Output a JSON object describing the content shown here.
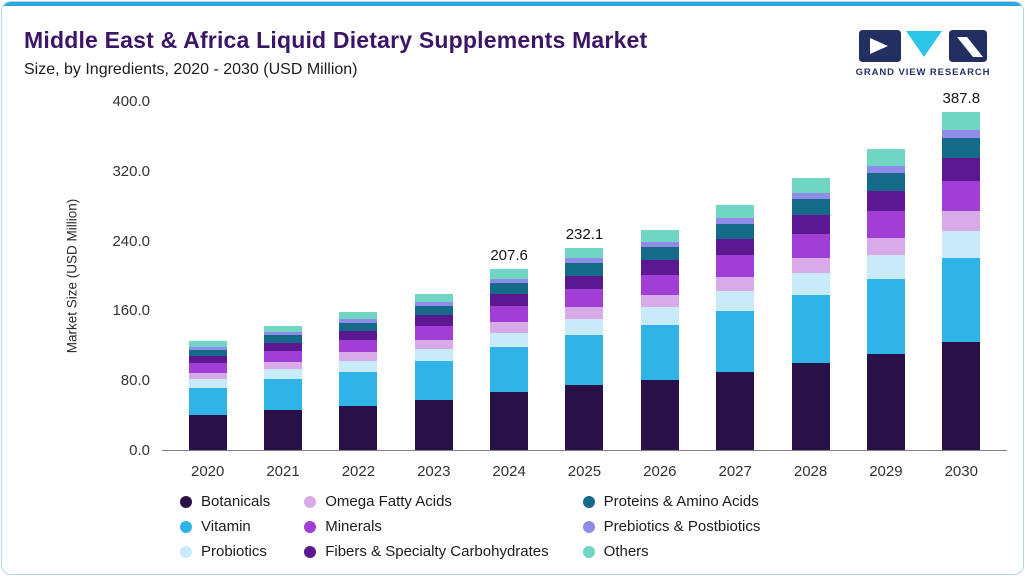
{
  "header": {
    "title": "Middle East & Africa Liquid Dietary Supplements Market",
    "subtitle": "Size, by Ingredients, 2020 - 2030 (USD Million)"
  },
  "logo": {
    "text": "GRAND VIEW RESEARCH"
  },
  "colors": {
    "accent": "#2aa9e0",
    "title": "#3b1666",
    "logo_navy": "#232e61",
    "logo_cyan": "#2ec6e6"
  },
  "chart_data": {
    "type": "bar",
    "stacked": true,
    "title": "Middle East & Africa Liquid Dietary Supplements Market",
    "subtitle": "Size, by Ingredients, 2020 - 2030 (USD Million)",
    "xlabel": "",
    "ylabel": "Market Size (USD Million)",
    "ylim": [
      0,
      400
    ],
    "yticks": [
      0,
      80,
      160,
      240,
      320,
      400
    ],
    "ytick_labels": [
      "0.0",
      "80.0",
      "160.0",
      "240.0",
      "320.0",
      "400.0"
    ],
    "grid": false,
    "legend_position": "bottom",
    "categories": [
      "2020",
      "2021",
      "2022",
      "2023",
      "2024",
      "2025",
      "2026",
      "2027",
      "2028",
      "2029",
      "2030"
    ],
    "series": [
      {
        "name": "Botanicals",
        "color": "#291046",
        "values": [
          40.0,
          45.5,
          50.5,
          57.0,
          66.0,
          74.0,
          80.5,
          89.5,
          99.5,
          110.0,
          124.0
        ]
      },
      {
        "name": "Vitamin",
        "color": "#30b4e8",
        "values": [
          31.0,
          35.5,
          39.5,
          44.5,
          52.0,
          58.0,
          63.0,
          70.0,
          78.0,
          86.0,
          96.5
        ]
      },
      {
        "name": "Probiotics",
        "color": "#c8eaf9",
        "values": [
          10.0,
          11.5,
          12.5,
          14.5,
          16.5,
          18.5,
          20.0,
          22.5,
          25.0,
          27.5,
          31.0
        ]
      },
      {
        "name": "Omega Fatty Acids",
        "color": "#d8abe8",
        "values": [
          7.5,
          8.5,
          9.5,
          10.5,
          12.0,
          13.5,
          14.5,
          16.0,
          18.0,
          20.0,
          22.3
        ]
      },
      {
        "name": "Minerals",
        "color": "#a13fd4",
        "values": [
          11.0,
          12.5,
          14.0,
          16.0,
          18.5,
          20.5,
          22.5,
          25.0,
          27.5,
          30.5,
          34.5
        ]
      },
      {
        "name": "Fibers & Specialty Carbohydrates",
        "color": "#5c1890",
        "values": [
          8.0,
          9.5,
          10.5,
          12.0,
          14.0,
          15.5,
          17.0,
          19.0,
          21.0,
          23.0,
          26.0
        ]
      },
      {
        "name": "Proteins & Amino Acids",
        "color": "#156a8a",
        "values": [
          7.5,
          8.5,
          9.5,
          10.5,
          12.5,
          14.0,
          15.0,
          17.0,
          19.0,
          21.0,
          23.5
        ]
      },
      {
        "name": "Prebiotics & Postbiotics",
        "color": "#8e8ce8",
        "values": [
          3.5,
          4.0,
          4.0,
          4.5,
          5.1,
          5.6,
          6.0,
          6.5,
          7.0,
          8.0,
          9.0
        ]
      },
      {
        "name": "Others",
        "color": "#70d6c3",
        "values": [
          6.5,
          7.0,
          8.0,
          9.5,
          11.0,
          12.5,
          13.5,
          15.0,
          16.5,
          18.5,
          21.0
        ]
      }
    ],
    "totals": [
      125.0,
      142.5,
      158.0,
      179.0,
      207.6,
      232.1,
      252.0,
      280.5,
      311.5,
      344.5,
      387.8
    ],
    "total_labels": [
      "",
      "",
      "",
      "",
      "207.6",
      "232.1",
      "",
      "",
      "",
      "",
      "387.8"
    ]
  }
}
